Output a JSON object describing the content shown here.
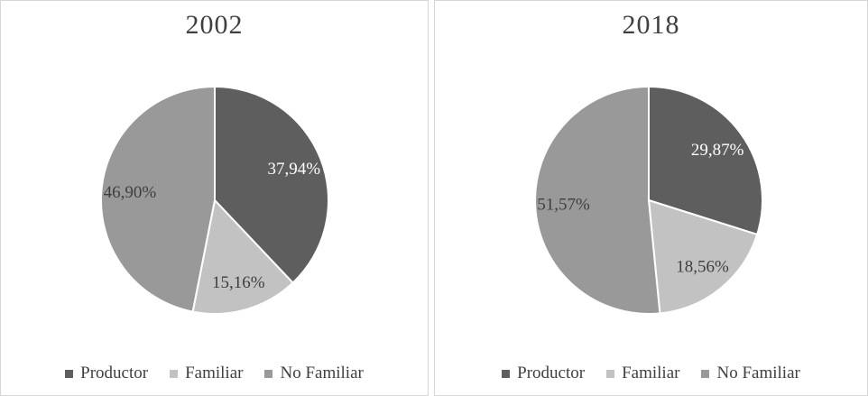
{
  "figure": {
    "background": "#ffffff",
    "panel_border_color": "#d7d7d7",
    "slice_border_color": "#ffffff",
    "text_color": "#3f3f3f"
  },
  "chart_data": [
    {
      "type": "pie",
      "title": "2002",
      "categories": [
        "Productor",
        "Familiar",
        "No Familiar"
      ],
      "values": [
        37.94,
        15.16,
        46.9
      ],
      "value_labels": [
        "37,94%",
        "15,16%",
        "46,90%"
      ],
      "colors": [
        "#5e5e5e",
        "#c2c2c2",
        "#999999"
      ],
      "value_label_colors": [
        "#ffffff",
        "#3f3f3f",
        "#3f3f3f"
      ],
      "start_angle_deg": 0,
      "direction": "clockwise",
      "legend_position": "bottom",
      "units": "percent"
    },
    {
      "type": "pie",
      "title": "2018",
      "categories": [
        "Productor",
        "Familiar",
        "No Familiar"
      ],
      "values": [
        29.87,
        18.56,
        51.57
      ],
      "value_labels": [
        "29,87%",
        "18,56%",
        "51,57%"
      ],
      "colors": [
        "#5e5e5e",
        "#c2c2c2",
        "#999999"
      ],
      "value_label_colors": [
        "#ffffff",
        "#3f3f3f",
        "#3f3f3f"
      ],
      "start_angle_deg": 0,
      "direction": "clockwise",
      "legend_position": "bottom",
      "units": "percent"
    }
  ]
}
